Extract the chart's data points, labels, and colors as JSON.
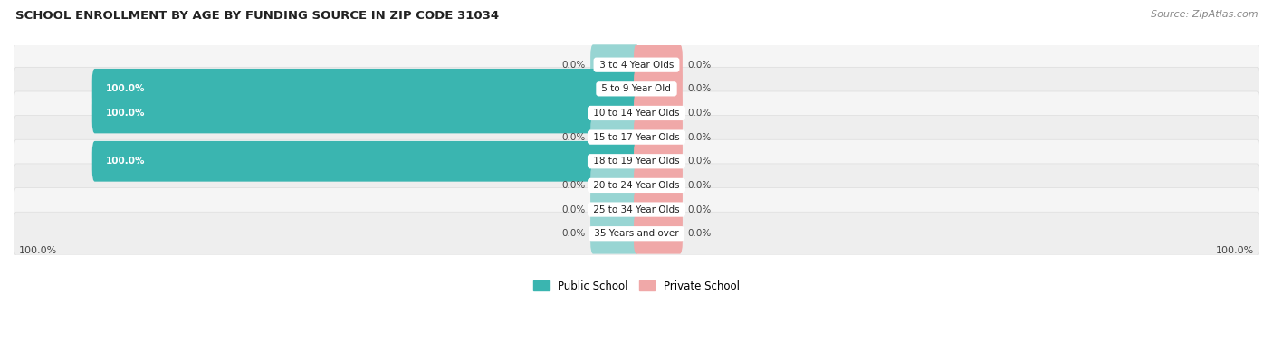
{
  "title": "SCHOOL ENROLLMENT BY AGE BY FUNDING SOURCE IN ZIP CODE 31034",
  "source": "Source: ZipAtlas.com",
  "categories": [
    "3 to 4 Year Olds",
    "5 to 9 Year Old",
    "10 to 14 Year Olds",
    "15 to 17 Year Olds",
    "18 to 19 Year Olds",
    "20 to 24 Year Olds",
    "25 to 34 Year Olds",
    "35 Years and over"
  ],
  "public_values": [
    0.0,
    100.0,
    100.0,
    0.0,
    100.0,
    0.0,
    0.0,
    0.0
  ],
  "private_values": [
    0.0,
    0.0,
    0.0,
    0.0,
    0.0,
    0.0,
    0.0,
    0.0
  ],
  "public_color_full": "#3ab5b0",
  "public_color_stub": "#98d5d3",
  "private_color_stub": "#f0a8a8",
  "row_bg_even": "#f5f5f5",
  "row_bg_odd": "#eeeeee",
  "row_edge": "#dddddd",
  "figsize": [
    14.06,
    3.78
  ],
  "dpi": 100,
  "xlim_left": -115,
  "xlim_right": 115,
  "max_bar": 100,
  "stub_size": 8
}
